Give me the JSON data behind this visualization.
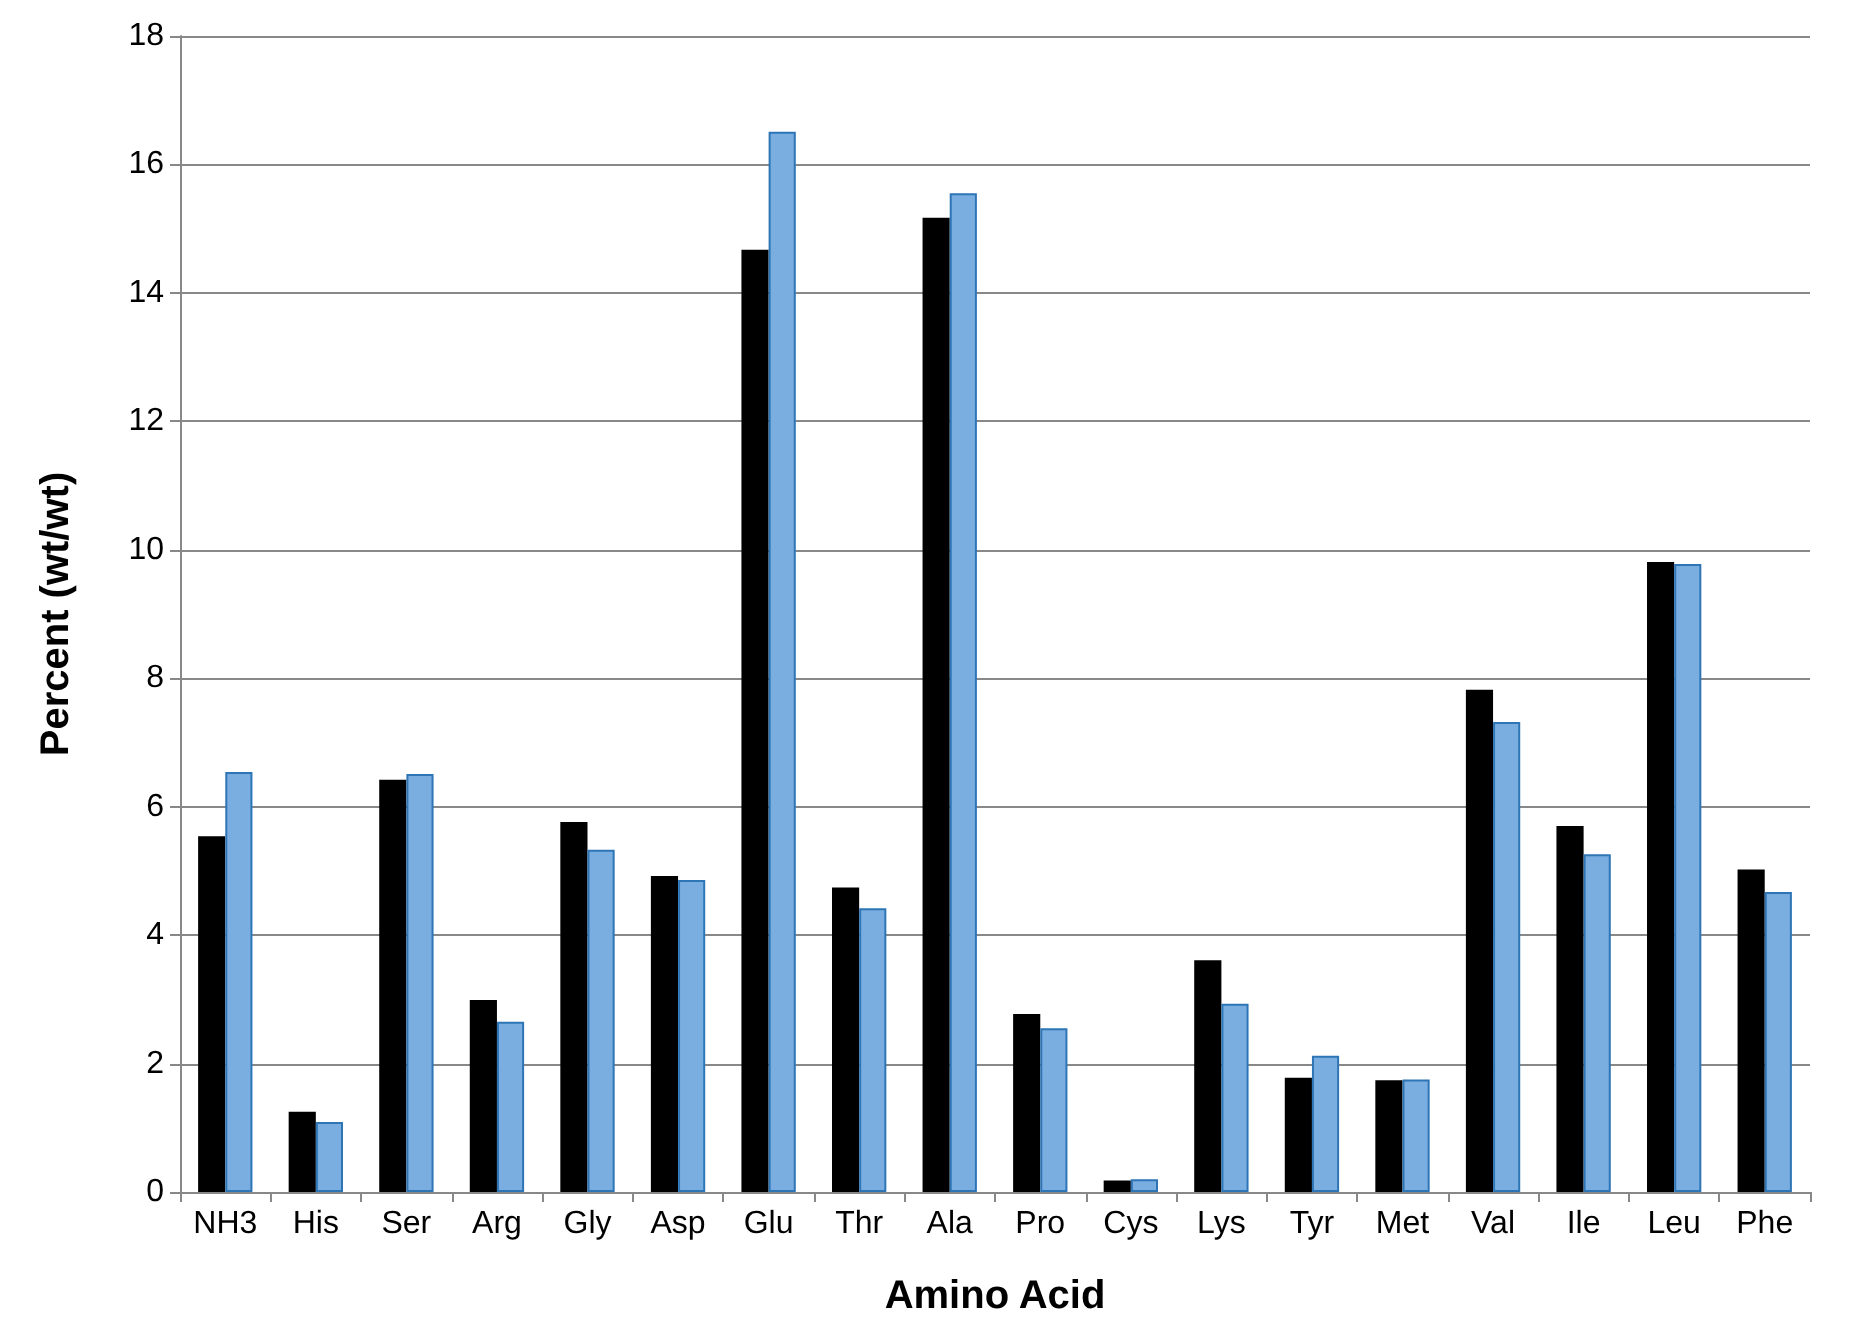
{
  "chart_data": {
    "type": "bar",
    "xlabel": "Amino Acid",
    "ylabel": "Percent (wt/wt)",
    "categories": [
      "NH3",
      "His",
      "Ser",
      "Arg",
      "Gly",
      "Asp",
      "Glu",
      "Thr",
      "Ala",
      "Pro",
      "Cys",
      "Lys",
      "Tyr",
      "Met",
      "Val",
      "Ile",
      "Leu",
      "Phe"
    ],
    "series": [
      {
        "color": "#000000",
        "values": [
          5.54,
          1.25,
          6.42,
          2.99,
          5.76,
          4.92,
          14.67,
          4.74,
          15.17,
          2.77,
          0.18,
          3.61,
          1.78,
          1.74,
          7.82,
          5.7,
          9.81,
          5.02
        ]
      },
      {
        "color": "#7aaee0",
        "values": [
          6.54,
          1.09,
          6.51,
          2.65,
          5.33,
          4.86,
          16.51,
          4.42,
          15.55,
          2.55,
          0.2,
          2.93,
          2.12,
          1.75,
          7.32,
          5.26,
          9.78,
          4.67
        ]
      }
    ],
    "ylim": [
      0,
      18
    ],
    "yticks": [
      0,
      2,
      4,
      6,
      8,
      10,
      12,
      14,
      16,
      18
    ],
    "grid": "y"
  }
}
